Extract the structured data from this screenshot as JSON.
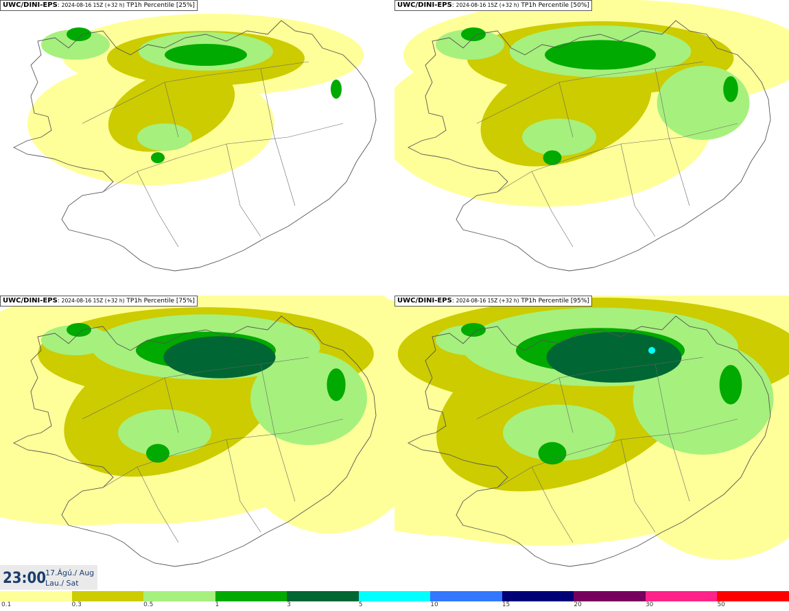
{
  "panels": [
    {
      "model": "UWC/DINI-EPS",
      "run": "2024-08-16 15Z (+32 h)",
      "param": "TP1h Percentile [25%]",
      "level": 0
    },
    {
      "model": "UWC/DINI-EPS",
      "run": "2024-08-16 15Z (+32 h)",
      "param": "TP1h Percentile [50%]",
      "level": 1
    },
    {
      "model": "UWC/DINI-EPS",
      "run": "2024-08-16 15Z (+32 h)",
      "param": "TP1h Percentile [75%]",
      "level": 2
    },
    {
      "model": "UWC/DINI-EPS",
      "run": "2024-08-16 15Z (+32 h)",
      "param": "TP1h Percentile [95%]",
      "level": 3
    }
  ],
  "valid_time": {
    "time": "23:00",
    "date_line1": "17.Ágú./ Aug",
    "date_line2": "Lau./ Sat"
  },
  "legend": {
    "colors": [
      "#ffff99",
      "#cccc00",
      "#a6f07e",
      "#00aa00",
      "#006633",
      "#00ffff",
      "#3377ff",
      "#000077",
      "#77005e",
      "#ff2288",
      "#ff0000"
    ],
    "ticks": [
      "0.1",
      "0.3",
      "0.5",
      "1",
      "3",
      "5",
      "10",
      "15",
      "20",
      "30",
      "50"
    ]
  }
}
